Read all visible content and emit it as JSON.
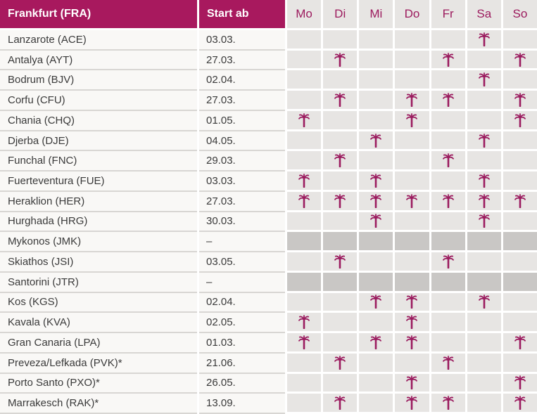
{
  "table": {
    "origin_header": "Frankfurt (FRA)",
    "start_header": "Start ab",
    "day_headers": [
      "Mo",
      "Di",
      "Mi",
      "Do",
      "Fr",
      "Sa",
      "So"
    ],
    "rows": [
      {
        "destination": "Lanzarote (ACE)",
        "start": "03.03.",
        "days": [
          0,
          0,
          0,
          0,
          0,
          1,
          0
        ],
        "no_service": false
      },
      {
        "destination": "Antalya (AYT)",
        "start": "27.03.",
        "days": [
          0,
          1,
          0,
          0,
          1,
          0,
          1
        ],
        "no_service": false
      },
      {
        "destination": "Bodrum (BJV)",
        "start": "02.04.",
        "days": [
          0,
          0,
          0,
          0,
          0,
          1,
          0
        ],
        "no_service": false
      },
      {
        "destination": "Corfu (CFU)",
        "start": "27.03.",
        "days": [
          0,
          1,
          0,
          1,
          1,
          0,
          1
        ],
        "no_service": false
      },
      {
        "destination": "Chania (CHQ)",
        "start": "01.05.",
        "days": [
          1,
          0,
          0,
          1,
          0,
          0,
          1
        ],
        "no_service": false
      },
      {
        "destination": "Djerba (DJE)",
        "start": "04.05.",
        "days": [
          0,
          0,
          1,
          0,
          0,
          1,
          0
        ],
        "no_service": false
      },
      {
        "destination": "Funchal (FNC)",
        "start": "29.03.",
        "days": [
          0,
          1,
          0,
          0,
          1,
          0,
          0
        ],
        "no_service": false
      },
      {
        "destination": "Fuerteventura (FUE)",
        "start": "03.03.",
        "days": [
          1,
          0,
          1,
          0,
          0,
          1,
          0
        ],
        "no_service": false
      },
      {
        "destination": "Heraklion (HER)",
        "start": "27.03.",
        "days": [
          1,
          1,
          1,
          1,
          1,
          1,
          1
        ],
        "no_service": false
      },
      {
        "destination": "Hurghada (HRG)",
        "start": "30.03.",
        "days": [
          0,
          0,
          1,
          0,
          0,
          1,
          0
        ],
        "no_service": false
      },
      {
        "destination": "Mykonos (JMK)",
        "start": "–",
        "days": [
          0,
          0,
          0,
          0,
          0,
          0,
          0
        ],
        "no_service": true
      },
      {
        "destination": "Skiathos (JSI)",
        "start": "03.05.",
        "days": [
          0,
          1,
          0,
          0,
          1,
          0,
          0
        ],
        "no_service": false
      },
      {
        "destination": "Santorini (JTR)",
        "start": "–",
        "days": [
          0,
          0,
          0,
          0,
          0,
          0,
          0
        ],
        "no_service": true
      },
      {
        "destination": "Kos (KGS)",
        "start": "02.04.",
        "days": [
          0,
          0,
          1,
          1,
          0,
          1,
          0
        ],
        "no_service": false
      },
      {
        "destination": "Kavala (KVA)",
        "start": "02.05.",
        "days": [
          1,
          0,
          0,
          1,
          0,
          0,
          0
        ],
        "no_service": false
      },
      {
        "destination": "Gran Canaria (LPA)",
        "start": "01.03.",
        "days": [
          1,
          0,
          1,
          1,
          0,
          0,
          1
        ],
        "no_service": false
      },
      {
        "destination": "Preveza/Lefkada (PVK)*",
        "start": "21.06.",
        "days": [
          0,
          1,
          0,
          0,
          1,
          0,
          0
        ],
        "no_service": false
      },
      {
        "destination": "Porto Santo (PXO)*",
        "start": "26.05.",
        "days": [
          0,
          0,
          0,
          1,
          0,
          0,
          1
        ],
        "no_service": false
      },
      {
        "destination": "Marrakesch (RAK)*",
        "start": "13.09.",
        "days": [
          0,
          1,
          0,
          1,
          1,
          0,
          1
        ],
        "no_service": false
      }
    ]
  },
  "icons": {
    "flight_day": "palm-tree-icon"
  },
  "colors": {
    "header_background": "#A8195E",
    "header_text": "#FFFFFF",
    "accent_text": "#9C1B5E",
    "palm_icon": "#9B1C5F",
    "left_cell_background": "#F9F8F6",
    "left_cell_text": "#3A3A3A",
    "day_cell_background": "#E7E5E3",
    "day_cell_no_service_background": "#C9C7C5",
    "row_separator": "#D8D6D3"
  }
}
